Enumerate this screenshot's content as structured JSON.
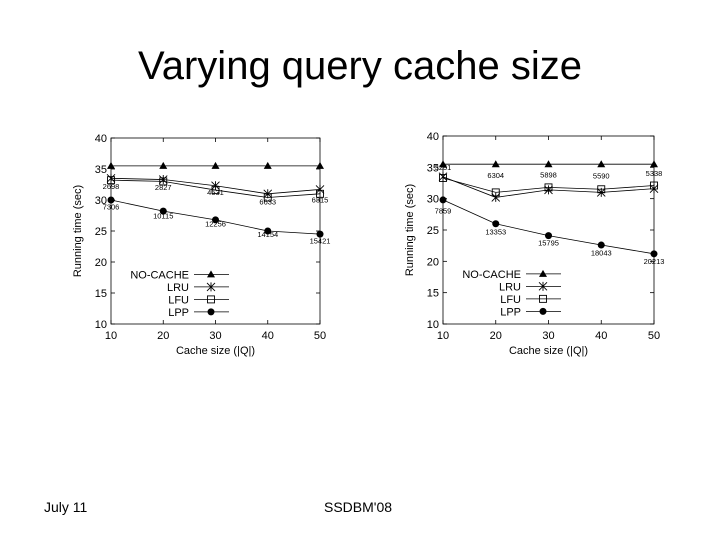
{
  "slide": {
    "title": "Varying query cache size",
    "footer_left": "July 11",
    "footer_center": "SSDBM'08"
  },
  "chart_data": [
    {
      "type": "line",
      "xlabel": "Cache size (|Q|)",
      "ylabel": "Running time (sec)",
      "xlim": [
        10,
        50
      ],
      "ylim": [
        10,
        40
      ],
      "x_ticks": [
        10,
        20,
        30,
        40,
        50
      ],
      "y_ticks": [
        10,
        15,
        20,
        25,
        30,
        35,
        40
      ],
      "grid": false,
      "legend_position": "bottom-left",
      "x": [
        10,
        20,
        30,
        40,
        50
      ],
      "series": [
        {
          "name": "NO-CACHE",
          "marker": "triangle",
          "values": [
            35.5,
            35.5,
            35.5,
            35.5,
            35.5
          ]
        },
        {
          "name": "LRU",
          "marker": "star",
          "values": [
            33.5,
            33.3,
            32.3,
            31.0,
            31.7
          ]
        },
        {
          "name": "LFU",
          "marker": "square",
          "values": [
            33.2,
            33.0,
            31.6,
            30.4,
            31.0
          ]
        },
        {
          "name": "LPP",
          "marker": "circle",
          "values": [
            30.0,
            28.2,
            26.8,
            25.0,
            24.5
          ]
        }
      ],
      "annotations": [
        {
          "text": "2698",
          "x": 10,
          "y": 31.8
        },
        {
          "text": "2827",
          "x": 20,
          "y": 31.6
        },
        {
          "text": "4531",
          "x": 30,
          "y": 30.8
        },
        {
          "text": "6633",
          "x": 40,
          "y": 29.3
        },
        {
          "text": "6315",
          "x": 50,
          "y": 29.6
        },
        {
          "text": "7306",
          "x": 10,
          "y": 28.5
        },
        {
          "text": "10115",
          "x": 20,
          "y": 27.0
        },
        {
          "text": "12256",
          "x": 30,
          "y": 25.7
        },
        {
          "text": "14154",
          "x": 40,
          "y": 24.0
        },
        {
          "text": "15421",
          "x": 50,
          "y": 23.0
        }
      ]
    },
    {
      "type": "line",
      "xlabel": "Cache size (|Q|)",
      "ylabel": "Running time (sec)",
      "xlim": [
        10,
        50
      ],
      "ylim": [
        10,
        40
      ],
      "x_ticks": [
        10,
        20,
        30,
        40,
        50
      ],
      "y_ticks": [
        10,
        15,
        20,
        25,
        30,
        35,
        40
      ],
      "grid": false,
      "legend_position": "bottom-left",
      "x": [
        10,
        20,
        30,
        40,
        50
      ],
      "series": [
        {
          "name": "NO-CACHE",
          "marker": "triangle",
          "values": [
            35.5,
            35.5,
            35.5,
            35.5,
            35.5
          ]
        },
        {
          "name": "LRU",
          "marker": "star",
          "values": [
            33.5,
            30.2,
            31.4,
            31.0,
            31.6
          ]
        },
        {
          "name": "LFU",
          "marker": "square",
          "values": [
            33.3,
            31.0,
            31.8,
            31.5,
            32.1
          ]
        },
        {
          "name": "LPP",
          "marker": "circle",
          "values": [
            29.8,
            26.0,
            24.1,
            22.6,
            21.2
          ]
        }
      ],
      "annotations": [
        {
          "text": "3251",
          "x": 10,
          "y": 34.6
        },
        {
          "text": "6304",
          "x": 20,
          "y": 33.3
        },
        {
          "text": "5898",
          "x": 30,
          "y": 33.4
        },
        {
          "text": "5590",
          "x": 40,
          "y": 33.2
        },
        {
          "text": "5338",
          "x": 50,
          "y": 33.6
        },
        {
          "text": "7859",
          "x": 10,
          "y": 27.6
        },
        {
          "text": "13353",
          "x": 20,
          "y": 24.3
        },
        {
          "text": "15795",
          "x": 30,
          "y": 22.5
        },
        {
          "text": "18043",
          "x": 40,
          "y": 20.9
        },
        {
          "text": "20213",
          "x": 50,
          "y": 19.6
        }
      ]
    }
  ]
}
